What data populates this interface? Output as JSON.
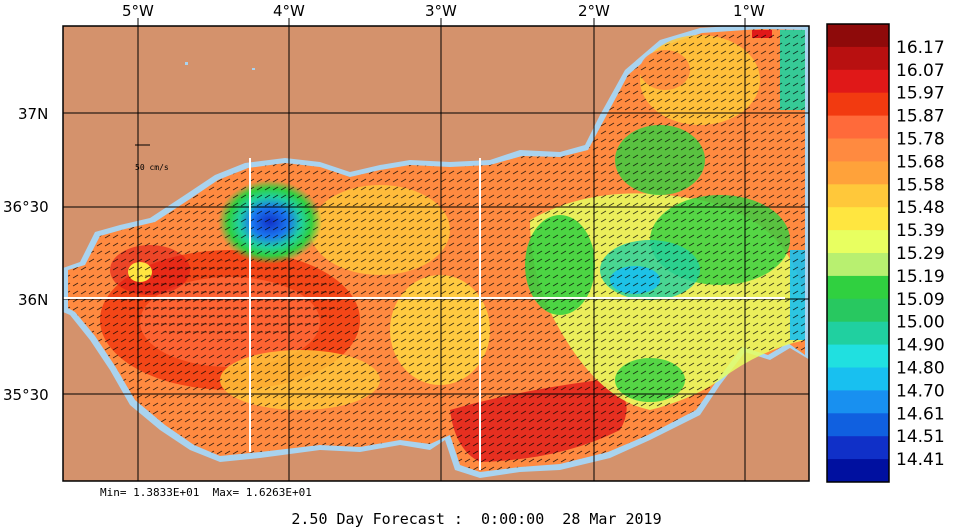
{
  "map": {
    "lon_labels": [
      "5°W",
      "4°W",
      "3°W",
      "2°W",
      "1°W"
    ],
    "lat_labels": [
      "37N",
      "36°30",
      "36N",
      "35°30"
    ],
    "scale_label": "50 cm/s",
    "land_color": "#d4926c",
    "coast_color": "#a9d3ef"
  },
  "colorbar": {
    "labels": [
      "16.17",
      "16.07",
      "15.97",
      "15.87",
      "15.78",
      "15.68",
      "15.58",
      "15.48",
      "15.39",
      "15.29",
      "15.19",
      "15.09",
      "15.00",
      "14.90",
      "14.80",
      "14.70",
      "14.61",
      "14.51",
      "14.41"
    ],
    "colors": [
      "#8e0a0a",
      "#b81010",
      "#e01818",
      "#f23a10",
      "#ff6a3a",
      "#ff8a40",
      "#ffa23a",
      "#ffc83a",
      "#ffe640",
      "#e8ff60",
      "#b8f070",
      "#30d040",
      "#28c860",
      "#20d0a0",
      "#20e0e0",
      "#18c0f0",
      "#1890f0",
      "#1060e0",
      "#1030c8",
      "#0010a0"
    ]
  },
  "stats": "Min= 1.3833E+01  Max= 1.6263E+01",
  "caption": "2.50 Day Forecast :  0:00:00  28 Mar 2019"
}
